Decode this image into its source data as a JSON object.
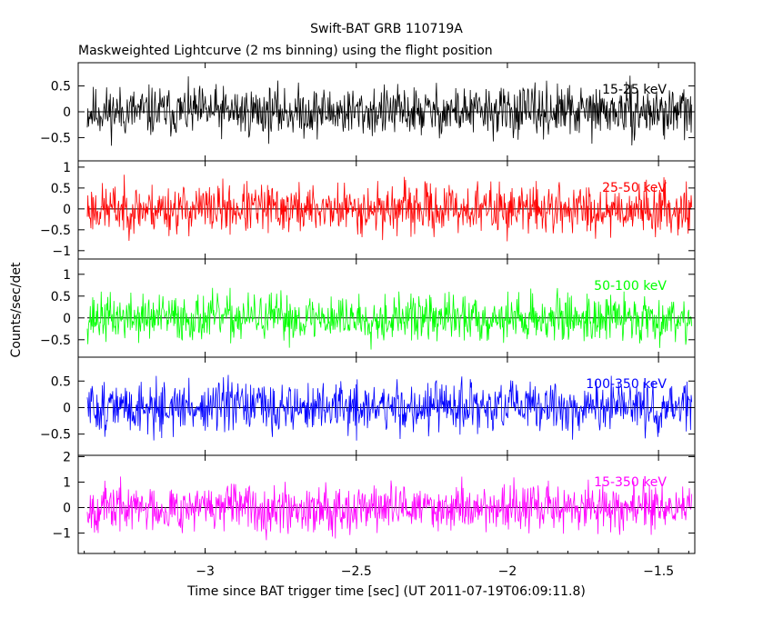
{
  "header": {
    "title": "Swift-BAT GRB 110719A",
    "subtitle": "Maskweighted Lightcurve (2 ms binning) using the flight position"
  },
  "axes": {
    "xlabel": "Time since BAT trigger time [sec] (UT 2011-07-19T06:09:11.8)",
    "ylabel": "Counts/sec/det",
    "xlim": [
      -3.42,
      -1.38
    ],
    "xticks": [
      -3,
      -2.5,
      -2,
      -1.5
    ],
    "xtick_labels": [
      "−3",
      "−2.5",
      "−2",
      "−1.5"
    ]
  },
  "chart_data": [
    {
      "type": "line",
      "name": "15-25 keV",
      "color": "#000000",
      "ylim": [
        -0.95,
        0.95
      ],
      "yticks": [
        -0.5,
        0,
        0.5
      ],
      "ytick_labels": [
        "−0.5",
        "0",
        "0.5"
      ],
      "x_range": [
        -3.39,
        -1.39
      ],
      "noise_amplitude": 0.45,
      "seed": 11
    },
    {
      "type": "line",
      "name": "25-50 keV",
      "color": "#ff0000",
      "ylim": [
        -1.2,
        1.15
      ],
      "yticks": [
        -1,
        -0.5,
        0,
        0.5,
        1
      ],
      "ytick_labels": [
        "−1",
        "−0.5",
        "0",
        "0.5",
        "1"
      ],
      "x_range": [
        -3.39,
        -1.39
      ],
      "noise_amplitude": 0.55,
      "seed": 23
    },
    {
      "type": "line",
      "name": "50-100 keV",
      "color": "#00ff00",
      "ylim": [
        -0.9,
        1.35
      ],
      "yticks": [
        -0.5,
        0,
        0.5,
        1
      ],
      "ytick_labels": [
        "−0.5",
        "0",
        "0.5",
        "1"
      ],
      "x_range": [
        -3.39,
        -1.39
      ],
      "noise_amplitude": 0.5,
      "seed": 37
    },
    {
      "type": "line",
      "name": "100-350 keV",
      "color": "#0000ff",
      "ylim": [
        -0.9,
        0.95
      ],
      "yticks": [
        -0.5,
        0,
        0.5
      ],
      "ytick_labels": [
        "−0.5",
        "0",
        "0.5"
      ],
      "x_range": [
        -3.39,
        -1.39
      ],
      "noise_amplitude": 0.45,
      "seed": 51
    },
    {
      "type": "line",
      "name": "15-350 keV",
      "color": "#ff00ff",
      "ylim": [
        -1.8,
        2.05
      ],
      "yticks": [
        -1,
        0,
        1,
        2
      ],
      "ytick_labels": [
        "−1",
        "0",
        "1",
        "2"
      ],
      "x_range": [
        -3.39,
        -1.39
      ],
      "noise_amplitude": 0.85,
      "seed": 67
    }
  ]
}
